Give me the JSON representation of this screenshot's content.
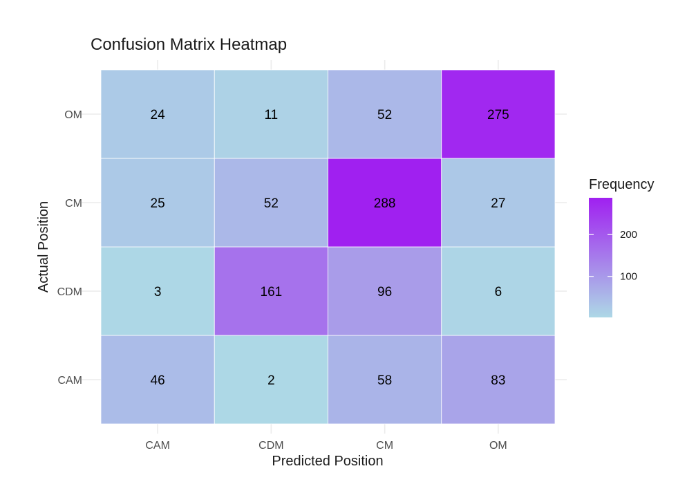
{
  "chart_data": {
    "type": "heatmap",
    "title": "Confusion Matrix Heatmap",
    "xlabel": "Predicted Position",
    "ylabel": "Actual Position",
    "x_categories": [
      "CAM",
      "CDM",
      "CM",
      "OM"
    ],
    "y_categories": [
      "CAM",
      "CDM",
      "CM",
      "OM"
    ],
    "matrix": [
      [
        46,
        2,
        58,
        83
      ],
      [
        3,
        161,
        96,
        6
      ],
      [
        25,
        52,
        288,
        27
      ],
      [
        24,
        11,
        52,
        275
      ]
    ],
    "legend": {
      "title": "Frequency",
      "ticks": [
        100,
        200
      ],
      "range": [
        2,
        288
      ],
      "low_color": "#ADD8E6",
      "high_color": "#A020F0",
      "placement": "right"
    },
    "grid": true
  }
}
